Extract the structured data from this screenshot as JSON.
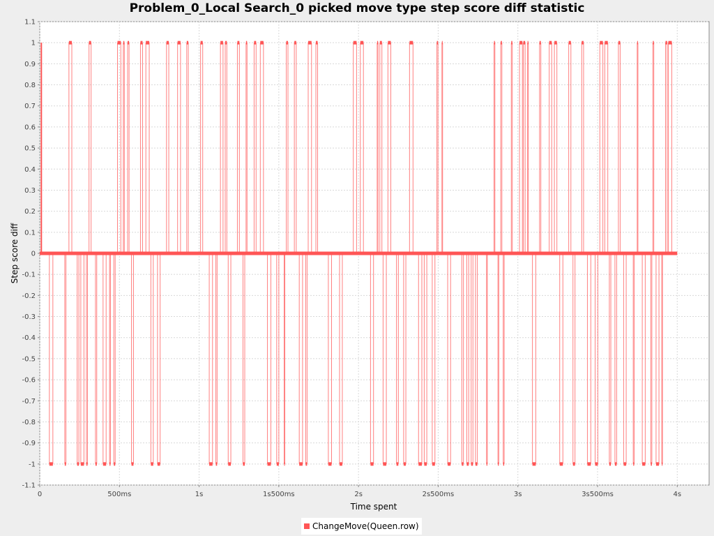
{
  "chart_data": {
    "type": "scatter",
    "title": "Problem_0_Local Search_0 picked move type step score diff statistic",
    "xlabel": "Time spent",
    "ylabel": "Step score diff",
    "xlim_ms": [
      0,
      4200
    ],
    "ylim": [
      -1.1,
      1.1
    ],
    "grid": true,
    "legend_position": "bottom-center",
    "x_ticks": [
      "0",
      "500ms",
      "1s",
      "1s500ms",
      "2s",
      "2s500ms",
      "3s",
      "3s500ms",
      "4s"
    ],
    "x_tick_values_ms": [
      0,
      500,
      1000,
      1500,
      2000,
      2500,
      3000,
      3500,
      4000
    ],
    "y_ticks": [
      "1.1",
      "1",
      "0.9",
      "0.8",
      "0.7",
      "0.6",
      "0.5",
      "0.4",
      "0.3",
      "0.2",
      "0.1",
      "0",
      "-0.1",
      "-0.2",
      "-0.3",
      "-0.4",
      "-0.5",
      "-0.6",
      "-0.7",
      "-0.8",
      "-0.9",
      "-1",
      "-1.1"
    ],
    "y_tick_values": [
      1.1,
      1,
      0.9,
      0.8,
      0.7,
      0.6,
      0.5,
      0.4,
      0.3,
      0.2,
      0.1,
      0,
      -0.1,
      -0.2,
      -0.3,
      -0.4,
      -0.5,
      -0.6,
      -0.7,
      -0.8,
      -0.9,
      -1,
      -1.1
    ],
    "series": [
      {
        "name": "ChangeMove(Queen.row)",
        "color": "#ff5555",
        "x_range_ms": [
          0,
          4000
        ],
        "values_range": [
          -1,
          1
        ],
        "note_points": "Dense alternation of steps between -1, 0 and 1 over the full 0–4s time span"
      }
    ]
  }
}
